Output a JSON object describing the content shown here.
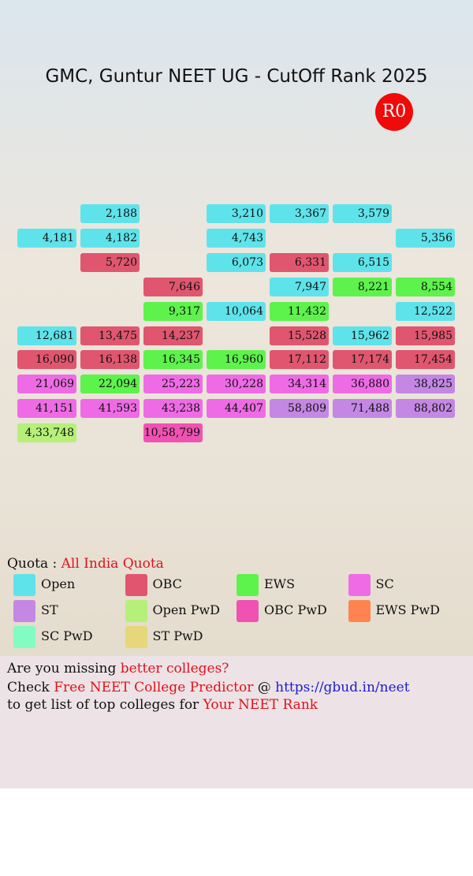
{
  "header": {
    "title": "GMC, Guntur NEET UG - CutOff Rank 2025",
    "round": "R0"
  },
  "grid": {
    "rows": [
      [
        null,
        {
          "rank": "2,188",
          "quota": "Open"
        },
        null,
        {
          "rank": "3,210",
          "quota": "Open"
        },
        {
          "rank": "3,367",
          "quota": "Open"
        },
        {
          "rank": "3,579",
          "quota": "Open"
        },
        null
      ],
      [
        {
          "rank": "4,181",
          "quota": "Open"
        },
        {
          "rank": "4,182",
          "quota": "Open"
        },
        null,
        {
          "rank": "4,743",
          "quota": "Open"
        },
        null,
        null,
        {
          "rank": "5,356",
          "quota": "Open"
        }
      ],
      [
        null,
        {
          "rank": "5,720",
          "quota": "OBC"
        },
        null,
        {
          "rank": "6,073",
          "quota": "Open"
        },
        {
          "rank": "6,331",
          "quota": "OBC"
        },
        {
          "rank": "6,515",
          "quota": "Open"
        },
        null
      ],
      [
        null,
        null,
        {
          "rank": "7,646",
          "quota": "OBC"
        },
        null,
        {
          "rank": "7,947",
          "quota": "Open"
        },
        {
          "rank": "8,221",
          "quota": "EWS"
        },
        {
          "rank": "8,554",
          "quota": "EWS"
        }
      ],
      [
        null,
        null,
        {
          "rank": "9,317",
          "quota": "EWS"
        },
        {
          "rank": "10,064",
          "quota": "Open"
        },
        {
          "rank": "11,432",
          "quota": "EWS"
        },
        null,
        {
          "rank": "12,522",
          "quota": "Open"
        }
      ],
      [
        {
          "rank": "12,681",
          "quota": "Open"
        },
        {
          "rank": "13,475",
          "quota": "OBC"
        },
        {
          "rank": "14,237",
          "quota": "OBC"
        },
        null,
        {
          "rank": "15,528",
          "quota": "OBC"
        },
        {
          "rank": "15,962",
          "quota": "Open"
        },
        {
          "rank": "15,985",
          "quota": "OBC"
        }
      ],
      [
        {
          "rank": "16,090",
          "quota": "OBC"
        },
        {
          "rank": "16,138",
          "quota": "OBC"
        },
        {
          "rank": "16,345",
          "quota": "EWS"
        },
        {
          "rank": "16,960",
          "quota": "EWS"
        },
        {
          "rank": "17,112",
          "quota": "OBC"
        },
        {
          "rank": "17,174",
          "quota": "OBC"
        },
        {
          "rank": "17,454",
          "quota": "OBC"
        }
      ],
      [
        {
          "rank": "21,069",
          "quota": "SC"
        },
        {
          "rank": "22,094",
          "quota": "EWS"
        },
        {
          "rank": "25,223",
          "quota": "SC"
        },
        {
          "rank": "30,228",
          "quota": "SC"
        },
        {
          "rank": "34,314",
          "quota": "SC"
        },
        {
          "rank": "36,880",
          "quota": "SC"
        },
        {
          "rank": "38,825",
          "quota": "ST"
        }
      ],
      [
        {
          "rank": "41,151",
          "quota": "SC"
        },
        {
          "rank": "41,593",
          "quota": "SC"
        },
        {
          "rank": "43,238",
          "quota": "SC"
        },
        {
          "rank": "44,407",
          "quota": "SC"
        },
        {
          "rank": "58,809",
          "quota": "ST"
        },
        {
          "rank": "71,488",
          "quota": "ST"
        },
        {
          "rank": "88,802",
          "quota": "ST"
        }
      ],
      [
        {
          "rank": "4,33,748",
          "quota": "Open PwD"
        },
        null,
        {
          "rank": "10,58,799",
          "quota": "OBC PwD"
        },
        null,
        null,
        null,
        null
      ]
    ]
  },
  "legend": {
    "label": "Quota :",
    "quota_name": "All India Quota",
    "items": [
      {
        "name": "Open",
        "color": "#5fe3ea"
      },
      {
        "name": "OBC",
        "color": "#e0566f"
      },
      {
        "name": "EWS",
        "color": "#5ef24c"
      },
      {
        "name": "SC",
        "color": "#ef6be6"
      },
      {
        "name": "ST",
        "color": "#c487e4"
      },
      {
        "name": "Open PwD",
        "color": "#b6f078"
      },
      {
        "name": "OBC PwD",
        "color": "#ef52b2"
      },
      {
        "name": "EWS PwD",
        "color": "#ff8452"
      },
      {
        "name": "SC PwD",
        "color": "#82fcc2"
      },
      {
        "name": "ST PwD",
        "color": "#e6d77a"
      }
    ]
  },
  "footer": {
    "line1": [
      "Are you missing ",
      "better colleges?"
    ],
    "line2": [
      "Check ",
      "Free NEET College Predictor",
      " @ ",
      "https://gbud.in/neet"
    ],
    "line3": [
      "to get list of top colleges for ",
      "Your NEET Rank"
    ]
  }
}
